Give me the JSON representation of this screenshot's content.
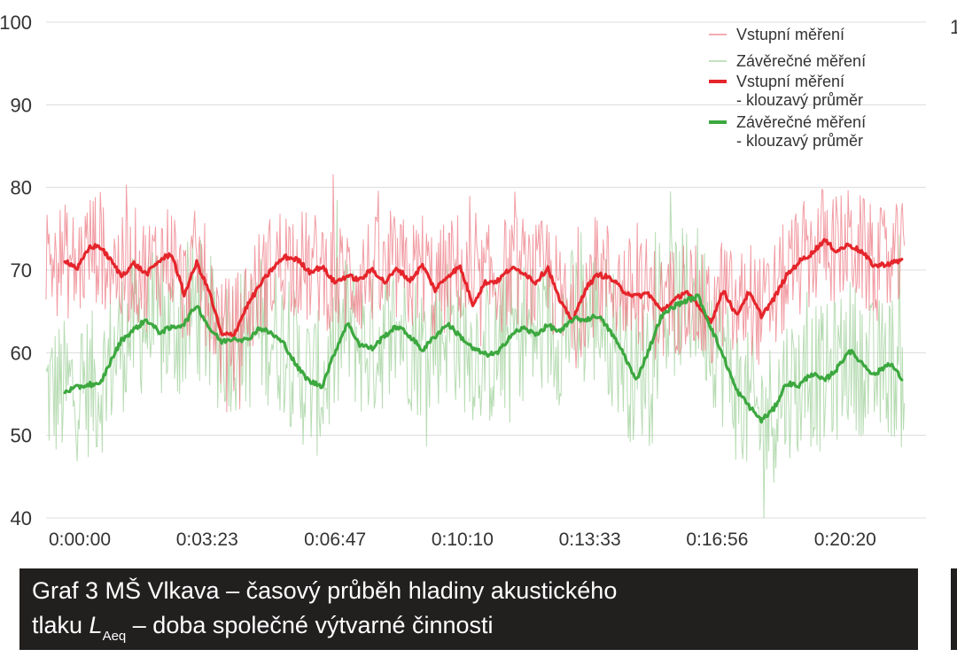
{
  "caption": {
    "line1": "Graf 3 MŠ Vlkava – časový průběh hladiny akustického",
    "line2_prefix": "tlaku ",
    "line2_symbol": "L",
    "line2_subscript": "Aeq",
    "line2_suffix": " – doba společné výtvarné činnosti"
  },
  "right_fragment_text": "1",
  "chart_data": {
    "type": "line",
    "title": "",
    "xlabel": "",
    "ylabel": "",
    "ylim": [
      40,
      100
    ],
    "yticks": [
      40,
      50,
      60,
      70,
      80,
      90,
      100
    ],
    "xticks": [
      "0:00:00",
      "0:03:23",
      "0:06:47",
      "0:10:10",
      "0:13:33",
      "0:16:56",
      "0:20:20"
    ],
    "xtick_seconds": [
      0,
      203,
      407,
      610,
      813,
      1016,
      1220
    ],
    "xlim_seconds": [
      0,
      1370
    ],
    "grid": "horizontal",
    "legend_position": "top-right",
    "legend": [
      {
        "label_lines": [
          "Vstupní měření"
        ],
        "style": "thin",
        "color": "#ec7b84"
      },
      {
        "label_lines": [
          "Závěrečné měření"
        ],
        "style": "thin",
        "color": "#9fd09a"
      },
      {
        "label_lines": [
          "Vstupní měření",
          "- klouzavý průměr"
        ],
        "style": "thick",
        "color": "#e5252b"
      },
      {
        "label_lines": [
          "Závěrečné měření",
          "- klouzavý průměr"
        ],
        "style": "thick",
        "color": "#3ca83f"
      }
    ],
    "series": [
      {
        "name": "Vstupní měření - klouzavý průměr",
        "color": "#e5252b",
        "x": [
          30,
          50,
          70,
          85,
          100,
          120,
          140,
          160,
          180,
          200,
          220,
          240,
          260,
          280,
          300,
          320,
          340,
          360,
          380,
          400,
          420,
          440,
          460,
          480,
          500,
          520,
          540,
          560,
          580,
          600,
          620,
          640,
          660,
          680,
          700,
          720,
          740,
          760,
          780,
          800,
          820,
          840,
          860,
          880,
          900,
          920,
          940,
          960,
          980,
          1000,
          1020,
          1040,
          1060,
          1080,
          1100,
          1120,
          1140,
          1160,
          1180,
          1200,
          1220,
          1240,
          1260,
          1280,
          1300,
          1320,
          1345,
          1365
        ],
        "y": [
          71.2,
          70.2,
          72.8,
          72.9,
          71.5,
          69.3,
          70.8,
          69.5,
          71.1,
          72.0,
          67.0,
          70.9,
          67.4,
          62.1,
          62.3,
          65.6,
          68.1,
          70.1,
          71.6,
          71.3,
          69.8,
          70.4,
          68.5,
          69.3,
          68.8,
          70.1,
          68.5,
          70.2,
          68.7,
          70.6,
          67.6,
          69.3,
          70.4,
          65.9,
          68.5,
          68.7,
          70.2,
          69.8,
          68.5,
          70.3,
          66.0,
          63.9,
          67.8,
          69.5,
          69.0,
          67.5,
          66.8,
          67.2,
          65.1,
          66.2,
          67.5,
          65.5,
          63.8,
          67.6,
          64.5,
          67.3,
          64.5,
          66.5,
          69.3,
          71.0,
          72.0,
          73.6,
          72.3,
          73.1,
          72.2,
          70.5,
          70.8,
          71.2
        ]
      },
      {
        "name": "Závěrečné měření - klouzavý průměr",
        "color": "#3ca83f",
        "x": [
          30,
          50,
          70,
          85,
          100,
          120,
          140,
          160,
          180,
          200,
          220,
          240,
          260,
          280,
          300,
          320,
          340,
          360,
          380,
          400,
          420,
          440,
          460,
          480,
          500,
          520,
          540,
          560,
          580,
          600,
          620,
          640,
          660,
          680,
          700,
          720,
          740,
          760,
          780,
          800,
          820,
          840,
          860,
          880,
          900,
          920,
          940,
          960,
          980,
          1000,
          1020,
          1040,
          1060,
          1080,
          1100,
          1120,
          1140,
          1160,
          1180,
          1200,
          1220,
          1240,
          1260,
          1280,
          1300,
          1320,
          1345,
          1365
        ],
        "y": [
          55.3,
          55.8,
          56.2,
          56.0,
          58.5,
          61.5,
          62.8,
          64.0,
          62.5,
          63.0,
          63.5,
          65.8,
          63.0,
          61.3,
          61.8,
          61.5,
          63.0,
          62.3,
          61.0,
          58.3,
          56.5,
          56.0,
          60.0,
          63.6,
          61.0,
          60.5,
          62.1,
          63.2,
          62.0,
          60.3,
          62.0,
          63.5,
          62.0,
          60.5,
          59.8,
          59.9,
          62.1,
          63.0,
          62.2,
          63.3,
          62.5,
          64.1,
          64.0,
          64.5,
          62.5,
          60.0,
          56.6,
          60.2,
          64.3,
          65.6,
          66.3,
          66.8,
          63.0,
          59.5,
          55.5,
          53.6,
          51.8,
          53.2,
          56.3,
          56.0,
          57.5,
          56.6,
          58.0,
          60.3,
          58.8,
          57.3,
          58.8,
          56.7
        ]
      }
    ]
  }
}
